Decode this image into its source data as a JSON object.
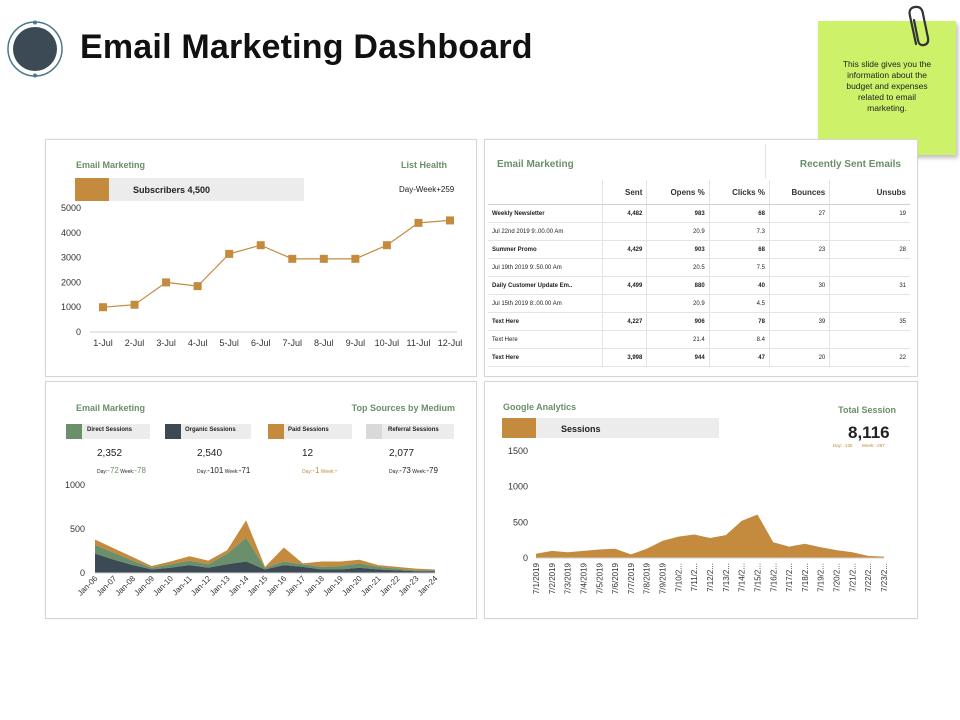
{
  "title": "Email Marketing Dashboard",
  "note": "This slide gives you the information about the budget and expenses related to email marketing.",
  "colors": {
    "gold": "#c48b3f",
    "green": "#6a8f6a",
    "dark": "#3c4a55",
    "gray": "#d9d9d9",
    "sticky": "#cdf26a"
  },
  "list_health": {
    "left_label": "Email Marketing",
    "right_label": "List Health",
    "subscribers_text": "Subscribers 4,500",
    "day_week_text": "Day-Week+259",
    "chart_data": {
      "type": "line",
      "categories": [
        "1-Jul",
        "2-Jul",
        "3-Jul",
        "4-Jul",
        "5-Jul",
        "6-Jul",
        "7-Jul",
        "8-Jul",
        "9-Jul",
        "10-Jul",
        "11-Jul",
        "12-Jul"
      ],
      "values": [
        1000,
        1100,
        2000,
        1850,
        3150,
        3500,
        2950,
        2950,
        2950,
        3500,
        4400,
        4500
      ],
      "ylim": [
        0,
        5000
      ],
      "yticks": [
        "0",
        "1000",
        "2000",
        "3000",
        "4000",
        "5000"
      ],
      "color": "#c48b3f"
    }
  },
  "recent_emails": {
    "left_label": "Email Marketing",
    "right_label": "Recently Sent Emails",
    "columns": [
      "",
      "Sent",
      "Opens %",
      "Clicks %",
      "Bounces",
      "Unsubs"
    ],
    "rows": [
      [
        "Weekly Newsletter",
        "4,482",
        "983",
        "68",
        "27",
        "19"
      ],
      [
        "Jul 22nd 2019 9:.00.00 Am",
        "",
        "20.9",
        "7.3",
        "",
        ""
      ],
      [
        "Summer Promo",
        "4,429",
        "903",
        "68",
        "23",
        "28"
      ],
      [
        "Jul 19th 2019 9:.50.00 Am",
        "",
        "20.5",
        "7.5",
        "",
        ""
      ],
      [
        "Daily Customer Update Em..",
        "4,499",
        "880",
        "40",
        "30",
        "31"
      ],
      [
        "Jul 15th 2019 8:.00.00 Am",
        "",
        "20.9",
        "4.5",
        "",
        ""
      ],
      [
        "Text Here",
        "4,227",
        "906",
        "78",
        "39",
        "35"
      ],
      [
        "Text Here",
        "",
        "21.4",
        "8.4",
        "",
        ""
      ],
      [
        "Text Here",
        "3,998",
        "944",
        "47",
        "20",
        "22"
      ]
    ]
  },
  "sources": {
    "left_label": "Email Marketing",
    "right_label": "Top Sources by Medium",
    "legend": [
      {
        "label": "Direct Sessions",
        "color": "#6a8f6a"
      },
      {
        "label": "Organic Sessions",
        "color": "#3c4a55"
      },
      {
        "label": "Paid Sessions",
        "color": "#c48b3f"
      },
      {
        "label": "Referral Sessions",
        "color": "#d9d9d9"
      }
    ],
    "stats": [
      {
        "value": "2,352",
        "day": "Day:",
        "day_val": "-72",
        "week": "Week:",
        "week_val": "-78",
        "color": "#6a8f6a"
      },
      {
        "value": "2,540",
        "day": "Day:",
        "day_val": "-101",
        "week": "Week:",
        "week_val": "-71",
        "color": "#222222"
      },
      {
        "value": "12",
        "day": "Day:",
        "day_val": "-1",
        "week": "Week:",
        "week_val": "-",
        "color": "#c48b3f"
      },
      {
        "value": "2,077",
        "day": "Day:",
        "day_val": "-73",
        "week": "Week:",
        "week_val": "-79",
        "color": "#222222"
      }
    ],
    "chart_data": {
      "type": "area",
      "categories": [
        "Jan-06",
        "Jan-07",
        "Jan-08",
        "Jan-09",
        "Jan-10",
        "Jan-11",
        "Jan-12",
        "Jan-13",
        "Jan-14",
        "Jan-15",
        "Jan-16",
        "Jan-17",
        "Jan-18",
        "Jan-19",
        "Jan-20",
        "Jan-21",
        "Jan-22",
        "Jan-23",
        "Jan-24"
      ],
      "ylim": [
        0,
        1000
      ],
      "yticks": [
        "0",
        "500",
        "1000"
      ],
      "series": [
        {
          "name": "Organic Sessions",
          "color": "#3c4a55",
          "values": [
            220,
            150,
            90,
            40,
            60,
            90,
            60,
            100,
            130,
            40,
            90,
            70,
            40,
            40,
            60,
            40,
            30,
            20,
            20
          ]
        },
        {
          "name": "Direct Sessions",
          "color": "#6a8f6a",
          "values": [
            100,
            80,
            50,
            20,
            40,
            50,
            40,
            120,
            270,
            20,
            40,
            30,
            30,
            40,
            50,
            30,
            20,
            10,
            10
          ]
        },
        {
          "name": "Paid Sessions",
          "color": "#c48b3f",
          "values": [
            60,
            50,
            40,
            20,
            30,
            50,
            40,
            40,
            200,
            10,
            160,
            10,
            60,
            50,
            40,
            20,
            20,
            20,
            10
          ]
        }
      ]
    }
  },
  "analytics": {
    "left_label": "Google Analytics",
    "right_label": "Total Session",
    "total": "8,116",
    "sessions_label": "Sessions",
    "day": "Day:",
    "day_val": "-136",
    "week": "Week:",
    "week_val": "-287",
    "chart_data": {
      "type": "area",
      "categories": [
        "7/1/2019",
        "7/2/2019",
        "7/3/2019",
        "7/4/2019",
        "7/5/2019",
        "7/6/2019",
        "7/7/2019",
        "7/8/2019",
        "7/9/2019",
        "7/10/2...",
        "7/11/2...",
        "7/12/2...",
        "7/13/2...",
        "7/14/2...",
        "7/15/2...",
        "7/16/2...",
        "7/17/2...",
        "7/18/2...",
        "7/19/2...",
        "7/20/2...",
        "7/21/2...",
        "7/22/2...",
        "7/23/2..."
      ],
      "values": [
        60,
        100,
        80,
        100,
        120,
        130,
        50,
        130,
        240,
        300,
        330,
        280,
        320,
        520,
        610,
        220,
        160,
        200,
        150,
        110,
        80,
        30,
        20
      ],
      "ylim": [
        0,
        1500
      ],
      "yticks": [
        "0",
        "500",
        "1000",
        "1500"
      ],
      "color": "#c48b3f"
    }
  }
}
